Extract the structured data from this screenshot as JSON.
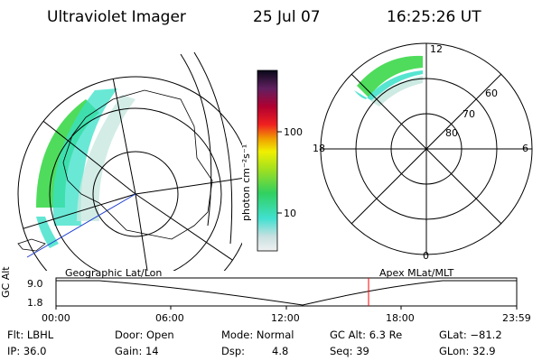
{
  "header": {
    "instrument": "Ultraviolet Imager",
    "date": "25 Jul 07",
    "time": "16:25:26 UT"
  },
  "colorbar": {
    "unit_label": "photon cm⁻²s⁻¹",
    "ticks": [
      "100",
      "10"
    ]
  },
  "polar_plot": {
    "mlt_labels": {
      "top": "12",
      "left": "18",
      "right": "6",
      "bottom": "0"
    },
    "lat_labels": [
      "60",
      "70",
      "80"
    ]
  },
  "panels": {
    "left_label": "Geographic Lat/Lon",
    "right_label": "Apex MLat/MLT"
  },
  "timeline": {
    "y_axis_label": "GC Alt",
    "y_ticks": [
      "9.0",
      "1.8"
    ],
    "x_ticks": [
      "00:00",
      "06:00",
      "12:00",
      "18:00",
      "23:59"
    ]
  },
  "info": {
    "row1": {
      "flt": "Flt: LBHL",
      "door": "Door: Open",
      "mode": "Mode: Normal",
      "gcalt": "GC Alt: 6.3 Re",
      "glat": "GLat: −81.2"
    },
    "row2": {
      "ip": "IP: 36.0",
      "gain": "Gain: 14",
      "dsp_label": "Dsp:",
      "dsp_value": "4.8",
      "seq": "Seq: 39",
      "glon": "GLon: 32.9"
    }
  },
  "colors": {
    "auroral_green": "#3cd84a",
    "auroral_cyan": "#38e0c8",
    "auroral_pale": "#c8e8e0",
    "current_time_marker": "#ff0000",
    "projection_line": "#1f3fd0"
  }
}
